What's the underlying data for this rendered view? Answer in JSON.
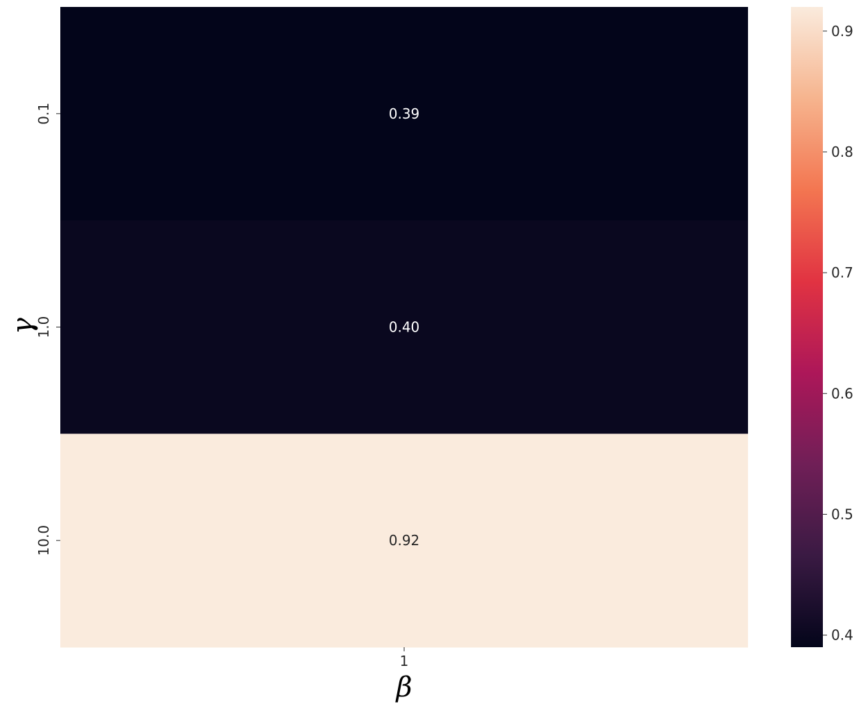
{
  "chart_data": {
    "type": "heatmap",
    "title": "",
    "xlabel": "β",
    "ylabel": "γ",
    "x_categories": [
      "1"
    ],
    "y_categories": [
      "0.1",
      "1.0",
      "10.0"
    ],
    "values": [
      [
        0.39
      ],
      [
        0.4
      ],
      [
        0.92
      ]
    ],
    "cell_labels": [
      [
        "0.39"
      ],
      [
        "0.40"
      ],
      [
        "0.92"
      ]
    ],
    "colorbar": {
      "range": [
        0.39,
        0.92
      ],
      "ticks": [
        0.4,
        0.5,
        0.6,
        0.7,
        0.8,
        0.9
      ],
      "tick_labels": [
        "0.4",
        "0.5",
        "0.6",
        "0.7",
        "0.8",
        "0.9"
      ],
      "colormap": "rocket",
      "colormap_stops": [
        "#03051A",
        "#3A1A43",
        "#701F57",
        "#AD1759",
        "#E13342",
        "#F37651",
        "#F6B48E",
        "#FAEBDD"
      ]
    },
    "colors": {
      "label_on_dark": "#ffffff",
      "label_on_light": "#262626"
    }
  }
}
